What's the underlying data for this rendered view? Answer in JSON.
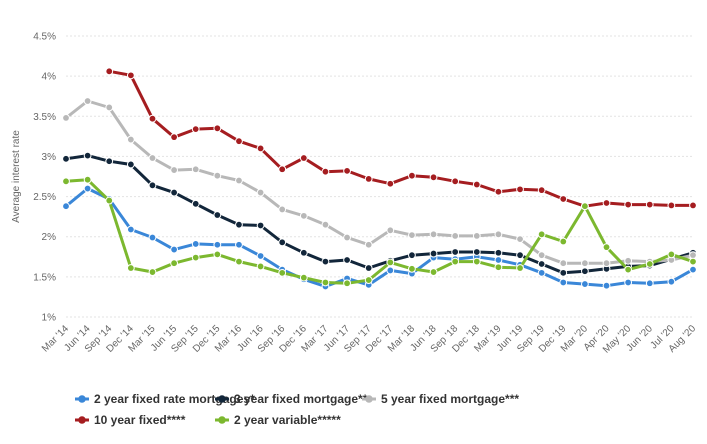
{
  "chart_data": {
    "type": "line",
    "ylabel": "Average interest rate",
    "xlabel": "",
    "ylim": [
      1,
      4.5
    ],
    "yticks": [
      "4.5%",
      "4%",
      "3.5%",
      "3%",
      "2.5%",
      "2%",
      "1.5%",
      "1%"
    ],
    "ytick_values": [
      4.5,
      4,
      3.5,
      3,
      2.5,
      2,
      1.5,
      1
    ],
    "grid": true,
    "legend_position": "bottom-left",
    "categories": [
      "Mar '14",
      "Jun '14",
      "Sep '14",
      "Dec '14",
      "Mar '15",
      "Jun '15",
      "Sep '15",
      "Dec '15",
      "Mar '16",
      "Jun '16",
      "Sep '16",
      "Dec '16",
      "Mar '17",
      "Jun '17",
      "Sep '17",
      "Dec '17",
      "Mar '18",
      "Jun '18",
      "Sep '18",
      "Dec '18",
      "Mar '19",
      "Jun '19",
      "Sep '19",
      "Dec '19",
      "Mar '20",
      "Apr '20",
      "May '20",
      "Jun '20",
      "Jul '20",
      "Aug '20"
    ],
    "series": [
      {
        "name": "2 year fixed rate mortgages*",
        "color": "#3a87d8",
        "values": [
          2.38,
          2.6,
          2.47,
          2.09,
          1.99,
          1.84,
          1.91,
          1.9,
          1.9,
          1.76,
          1.59,
          1.47,
          1.38,
          1.48,
          1.4,
          1.58,
          1.54,
          1.74,
          1.72,
          1.75,
          1.71,
          1.65,
          1.55,
          1.43,
          1.41,
          1.39,
          1.43,
          1.42,
          1.44,
          1.59
        ]
      },
      {
        "name": "3 year fixed mortgage**",
        "color": "#12263a",
        "values": [
          2.97,
          3.01,
          2.94,
          2.9,
          2.64,
          2.55,
          2.41,
          2.27,
          2.15,
          2.14,
          1.93,
          1.8,
          1.69,
          1.71,
          1.61,
          1.7,
          1.77,
          1.79,
          1.81,
          1.81,
          1.8,
          1.77,
          1.66,
          1.55,
          1.57,
          1.6,
          1.63,
          1.64,
          1.72,
          1.8
        ]
      },
      {
        "name": "5 year fixed mortgage***",
        "color": "#b8b8b8",
        "values": [
          3.48,
          3.69,
          3.61,
          3.21,
          2.98,
          2.83,
          2.84,
          2.76,
          2.7,
          2.55,
          2.34,
          2.26,
          2.15,
          1.99,
          1.9,
          2.08,
          2.02,
          2.03,
          2.01,
          2.01,
          2.03,
          1.97,
          1.77,
          1.67,
          1.67,
          1.67,
          1.7,
          1.69,
          1.71,
          1.77
        ]
      },
      {
        "name": "10 year fixed****",
        "color": "#a51d20",
        "start_index": 2,
        "values": [
          null,
          null,
          4.06,
          4.01,
          3.47,
          3.24,
          3.34,
          3.35,
          3.19,
          3.1,
          2.84,
          2.98,
          2.81,
          2.82,
          2.72,
          2.66,
          2.76,
          2.74,
          2.69,
          2.65,
          2.56,
          2.59,
          2.58,
          2.47,
          2.38,
          2.42,
          2.4,
          2.4,
          2.39,
          2.39
        ]
      },
      {
        "name": "2 year variable*****",
        "color": "#7cb82f",
        "values": [
          2.69,
          2.71,
          2.45,
          1.61,
          1.56,
          1.67,
          1.74,
          1.78,
          1.69,
          1.63,
          1.55,
          1.49,
          1.43,
          1.42,
          1.46,
          1.68,
          1.6,
          1.56,
          1.69,
          1.69,
          1.62,
          1.61,
          2.03,
          1.94,
          2.38,
          1.87,
          1.59,
          1.66,
          1.78,
          1.69
        ]
      }
    ]
  }
}
